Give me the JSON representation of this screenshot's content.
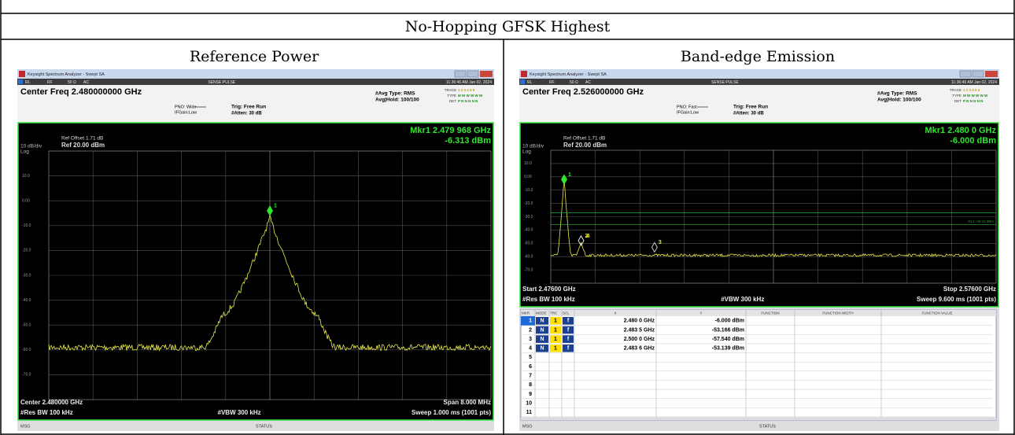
{
  "header": {
    "title": "No-Hopping GFSK Highest"
  },
  "panels": [
    {
      "caption": "Reference Power",
      "screen": {
        "window_title": "Keysight Spectrum Analyzer - Swept SA",
        "status": [
          "RL",
          "RF",
          "50 Ω",
          "AC"
        ],
        "sense": "SENSE:PULSE",
        "datetime": "11:36:46 AM Jan 02, 2024",
        "center_freq": "Center Freq 2.480000000 GHz",
        "pno": "PNO: Wide",
        "ifgain": "IFGain:Low",
        "trig": "Trig: Free Run",
        "atten": "#Atten: 30 dB",
        "avg_type": "#Avg Type: RMS",
        "avg_hold": "Avg|Hold: 100/100",
        "trace_labels": [
          "TRACE",
          "TYPE",
          "DET"
        ],
        "trace_values": [
          "1 2 3 4 5 6",
          "M W W W W W",
          "P N N N N N"
        ],
        "marker_freq": "Mkr1 2.479 968 GHz",
        "marker_level": "-6.313 dBm",
        "ref_offset": "Ref Offset 1.71 dB",
        "ref_level": "Ref 20.00 dBm",
        "scale": "10 dB/div",
        "scale_type": "Log",
        "y_labels": [
          "10.0",
          "0.00",
          "-10.0",
          "-20.0",
          "-30.0",
          "-40.0",
          "-50.0",
          "-60.0",
          "-70.0"
        ],
        "plot_markers": [
          "1"
        ],
        "footer": {
          "left1": "Center 2.480000 GHz",
          "right1": "Span 8.000 MHz",
          "left2": "#Res BW 100 kHz",
          "mid2": "#VBW 300 kHz",
          "right2": "Sweep  1.000 ms (1001 pts)"
        },
        "msg": "MSG",
        "status_bar": "STATUS"
      }
    },
    {
      "caption": "Band-edge Emission",
      "screen": {
        "window_title": "Keysight Spectrum Analyzer - Swept SA",
        "status": [
          "RL",
          "RF",
          "50 Ω",
          "AC"
        ],
        "sense": "SENSE:PULSE",
        "datetime": "11:36:49 AM Jan 02, 2024",
        "center_freq": "Center Freq 2.526000000 GHz",
        "pno": "PNO: Fast",
        "ifgain": "IFGain:Low",
        "trig": "Trig: Free Run",
        "atten": "#Atten: 30 dB",
        "avg_type": "#Avg Type: RMS",
        "avg_hold": "Avg|Hold: 100/100",
        "trace_labels": [
          "TRACE",
          "TYPE",
          "DET"
        ],
        "trace_values": [
          "1 2 3 4 5 6",
          "M W W W W W",
          "P N N N N N"
        ],
        "marker_freq": "Mkr1 2.480 0 GHz",
        "marker_level": "-6.000 dBm",
        "ref_offset": "Ref Offset 1.71 dB",
        "ref_level": "Ref 20.00 dBm",
        "scale": "10 dB/div",
        "scale_type": "Log",
        "y_labels": [
          "10.0",
          "0.00",
          "-10.0",
          "-20.0",
          "-30.0",
          "-40.0",
          "-50.0",
          "-60.0",
          "-70.0"
        ],
        "plot_markers": [
          "1",
          "2",
          "4",
          "3"
        ],
        "display_line": "DL1 -26.31 dBm",
        "footer": {
          "left1": "Start 2.47600 GHz",
          "right1": "Stop 2.57600 GHz",
          "left2": "#Res BW 100 kHz",
          "mid2": "#VBW 300 kHz",
          "right2": "Sweep  9.600 ms (1001 pts)"
        },
        "marker_table": {
          "headers": [
            "MKR",
            "MODE",
            "TRC",
            "SCL",
            "X",
            "Y",
            "FUNCTION",
            "FUNCTION WIDTH",
            "FUNCTION VALUE"
          ],
          "rows": [
            [
              "1",
              "N",
              "1",
              "f",
              "2.480 0 GHz",
              "-6.000 dBm"
            ],
            [
              "2",
              "N",
              "1",
              "f",
              "2.483 5 GHz",
              "-53.166 dBm"
            ],
            [
              "3",
              "N",
              "1",
              "f",
              "2.500 0 GHz",
              "-57.540 dBm"
            ],
            [
              "4",
              "N",
              "1",
              "f",
              "2.483 6 GHz",
              "-53.139 dBm"
            ],
            [
              "5"
            ],
            [
              "6"
            ],
            [
              "7"
            ],
            [
              "8"
            ],
            [
              "9"
            ],
            [
              "10"
            ],
            [
              "11"
            ]
          ]
        },
        "msg": "MSG",
        "status_bar": "STATUS"
      }
    }
  ]
}
